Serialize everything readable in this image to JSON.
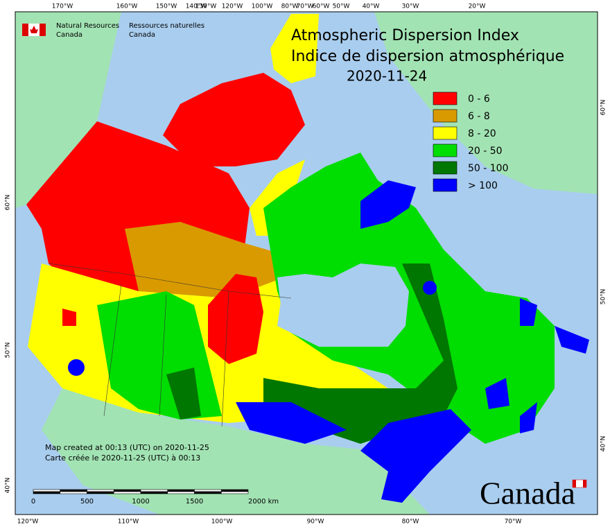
{
  "header": {
    "agency_en": "Natural Resources",
    "agency_en_2": "Canada",
    "agency_fr": "Ressources naturelles",
    "agency_fr_2": "Canada"
  },
  "title": {
    "en": "Atmospheric Dispersion Index",
    "fr": "Indice de dispersion atmosphérique",
    "date": "2020-11-24"
  },
  "legend": [
    {
      "label": "0 - 6",
      "color": "#ff0000"
    },
    {
      "label": "6 - 8",
      "color": "#d99a00"
    },
    {
      "label": "8 - 20",
      "color": "#ffff00"
    },
    {
      "label": "20 - 50",
      "color": "#00dd00"
    },
    {
      "label": "50 - 100",
      "color": "#007700"
    },
    {
      "label": "> 100",
      "color": "#0000ff"
    }
  ],
  "top_longitudes": [
    "170°W",
    "160°W",
    "150°W",
    "140°W",
    "130°W",
    "120°W",
    "100°W",
    "80°W",
    "70°W",
    "60°W",
    "50°W",
    "40°W",
    "30°W",
    "20°W"
  ],
  "bottom_longitudes": [
    "120°W",
    "110°W",
    "100°W",
    "90°W",
    "80°W",
    "70°W"
  ],
  "left_latitudes": [
    "60°N",
    "50°N",
    "40°N"
  ],
  "right_latitudes": [
    "60°N",
    "50°N",
    "40°N"
  ],
  "scale": [
    "0",
    "500",
    "1000",
    "1500",
    "2000 km"
  ],
  "footer": {
    "created_en": "Map created at 00:13 (UTC) on 2020-11-25",
    "created_fr": "Carte créée le 2020-11-25 (UTC) à 00:13"
  },
  "wordmark": "Canada"
}
